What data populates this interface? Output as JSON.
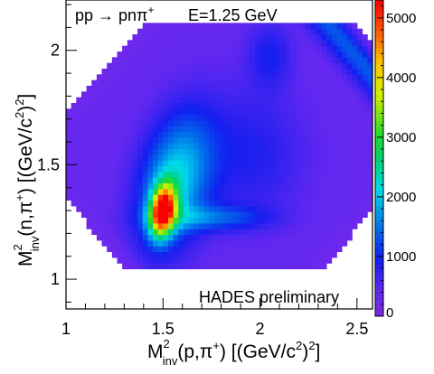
{
  "chart_data": {
    "type": "heatmap",
    "title": "",
    "annotations": {
      "reaction_main": "pp → pnπ",
      "reaction_sup": "+",
      "energy": "E=1.25 GeV",
      "preliminary": "HADES preliminary"
    },
    "xlabel": {
      "main": "M",
      "sup": "2",
      "sub": "inv",
      "rest_a": "(p,π",
      "rest_sup": "+",
      "rest_b": ") [(GeV/c",
      "unit_sup": "2",
      "rest_c": ")",
      "end_sup": "2",
      "end": "]"
    },
    "ylabel": {
      "main": "M",
      "sup": "2",
      "sub": "inv",
      "rest_a": "(n,π",
      "rest_sup": "+",
      "rest_b": ") [(GeV/c",
      "unit_sup": "2",
      "rest_c": ")",
      "end_sup": "2",
      "end": "]"
    },
    "xlim": [
      1.0,
      2.58
    ],
    "ylim": [
      0.87,
      2.22
    ],
    "xticks": [
      {
        "value": 1,
        "label": "1"
      },
      {
        "value": 1.5,
        "label": "1.5"
      },
      {
        "value": 2,
        "label": "2"
      },
      {
        "value": 2.5,
        "label": "2.5"
      }
    ],
    "yticks": [
      {
        "value": 1,
        "label": "1"
      },
      {
        "value": 1.5,
        "label": "1.5"
      },
      {
        "value": 2,
        "label": "2"
      }
    ],
    "colorbar": {
      "range": [
        0,
        5300
      ],
      "ticks": [
        {
          "value": 0,
          "label": "0"
        },
        {
          "value": 1000,
          "label": "1000"
        },
        {
          "value": 2000,
          "label": "2000"
        },
        {
          "value": 3000,
          "label": "3000"
        },
        {
          "value": 4000,
          "label": "4000"
        },
        {
          "value": 5000,
          "label": "5000"
        }
      ]
    },
    "bins": {
      "nx": 60,
      "ny": 54
    },
    "peak": {
      "x": 1.5,
      "y": 1.3,
      "value": 5000
    },
    "grid": false,
    "legend": "none"
  }
}
